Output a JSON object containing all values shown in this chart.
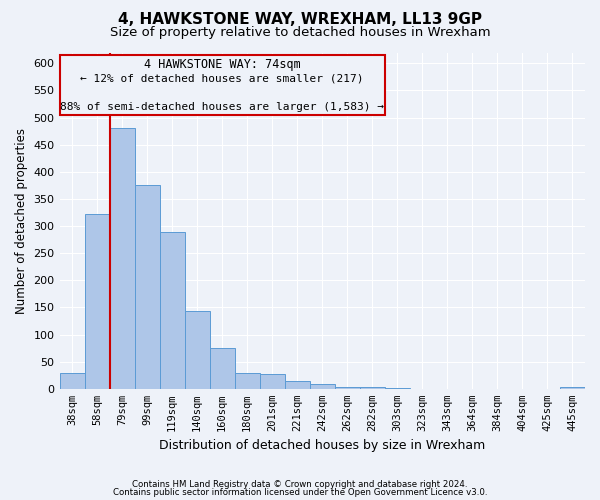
{
  "title": "4, HAWKSTONE WAY, WREXHAM, LL13 9GP",
  "subtitle": "Size of property relative to detached houses in Wrexham",
  "xlabel": "Distribution of detached houses by size in Wrexham",
  "ylabel": "Number of detached properties",
  "bar_labels": [
    "38sqm",
    "58sqm",
    "79sqm",
    "99sqm",
    "119sqm",
    "140sqm",
    "160sqm",
    "180sqm",
    "201sqm",
    "221sqm",
    "242sqm",
    "262sqm",
    "282sqm",
    "303sqm",
    "323sqm",
    "343sqm",
    "364sqm",
    "384sqm",
    "404sqm",
    "425sqm",
    "445sqm"
  ],
  "bar_values": [
    30,
    322,
    481,
    375,
    289,
    144,
    75,
    30,
    27,
    14,
    8,
    4,
    4,
    1,
    0,
    0,
    0,
    0,
    0,
    0,
    3
  ],
  "bar_color": "#aec6e8",
  "bar_edge_color": "#5b9bd5",
  "annotation_title": "4 HAWKSTONE WAY: 74sqm",
  "annotation_line1": "← 12% of detached houses are smaller (217)",
  "annotation_line2": "88% of semi-detached houses are larger (1,583) →",
  "vline_color": "#cc0000",
  "box_edge_color": "#cc0000",
  "ylim": [
    0,
    620
  ],
  "yticks": [
    0,
    50,
    100,
    150,
    200,
    250,
    300,
    350,
    400,
    450,
    500,
    550,
    600
  ],
  "footer1": "Contains HM Land Registry data © Crown copyright and database right 2024.",
  "footer2": "Contains public sector information licensed under the Open Government Licence v3.0.",
  "bg_color": "#eef2f9",
  "grid_color": "#ffffff",
  "title_fontsize": 11,
  "subtitle_fontsize": 9.5
}
